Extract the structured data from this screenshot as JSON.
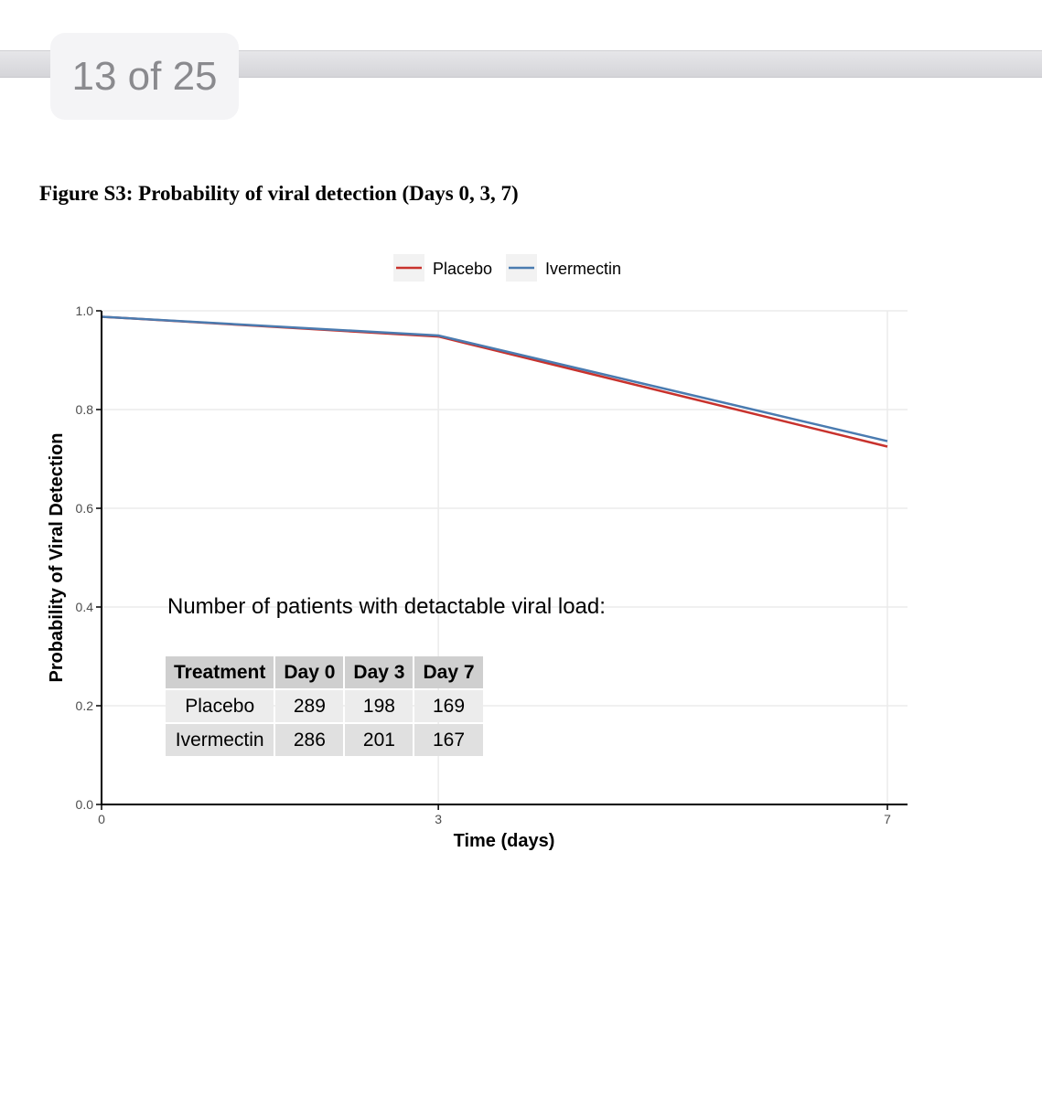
{
  "viewer": {
    "page_indicator": "13 of 25"
  },
  "figure": {
    "caption": "Figure S3: Probability of viral detection (Days 0, 3, 7)"
  },
  "chart_data": {
    "type": "line",
    "x": [
      0,
      3,
      7
    ],
    "x_ticks": [
      "0",
      "3",
      "7"
    ],
    "y_ticks": [
      "0.0",
      "0.2",
      "0.4",
      "0.6",
      "0.8",
      "1.0"
    ],
    "xlim": [
      0,
      7
    ],
    "ylim": [
      0,
      1
    ],
    "xlabel": "Time (days)",
    "ylabel": "Probability of Viral Detection",
    "grid": true,
    "legend_position": "top",
    "series": [
      {
        "name": "Placebo",
        "color": "#c8322d",
        "values": [
          0.988,
          0.948,
          0.725
        ]
      },
      {
        "name": "Ivermectin",
        "color": "#4a7bb0",
        "values": [
          0.988,
          0.95,
          0.736
        ]
      }
    ],
    "annotation_table": {
      "title": "Number of patients with detactable viral load:",
      "columns": [
        "Treatment",
        "Day 0",
        "Day 3",
        "Day 7"
      ],
      "rows": [
        [
          "Placebo",
          "289",
          "198",
          "169"
        ],
        [
          "Ivermectin",
          "286",
          "201",
          "167"
        ]
      ]
    }
  }
}
